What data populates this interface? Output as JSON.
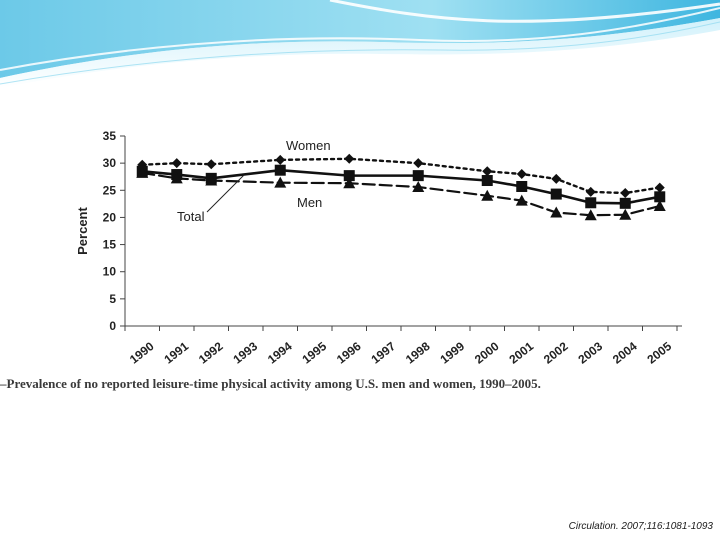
{
  "slide": {
    "caption": "–Prevalence of no reported leisure-time physical activity among U.S. men and women, 1990–2005.",
    "citation": "Circulation. 2007;116:1081-1093",
    "accent_colors": [
      "#7fd3ec",
      "#3fb6e0",
      "#bde9f6"
    ]
  },
  "chart_data": {
    "type": "line",
    "title": "",
    "xlabel": "",
    "ylabel": "Percent",
    "categories": [
      "1990",
      "1991",
      "1992",
      "1993",
      "1994",
      "1995",
      "1996",
      "1997",
      "1998",
      "1999",
      "2000",
      "2001",
      "2002",
      "2003",
      "2004",
      "2005"
    ],
    "ylim": [
      0,
      35
    ],
    "yticks": [
      0,
      5,
      10,
      15,
      20,
      25,
      30,
      35
    ],
    "grid": false,
    "series": [
      {
        "name": "Women",
        "marker": "diamond",
        "line_style": "dotted",
        "color": "#111111",
        "x": [
          1990,
          1991,
          1992,
          1994,
          1996,
          1998,
          2000,
          2001,
          2002,
          2003,
          2004,
          2005
        ],
        "values": [
          29.7,
          30.0,
          29.8,
          30.6,
          30.8,
          30.0,
          28.5,
          28.0,
          27.1,
          24.7,
          24.5,
          25.5
        ]
      },
      {
        "name": "Total",
        "marker": "square",
        "line_style": "solid",
        "color": "#111111",
        "x": [
          1990,
          1991,
          1992,
          1994,
          1996,
          1998,
          2000,
          2001,
          2002,
          2003,
          2004,
          2005
        ],
        "values": [
          28.5,
          27.9,
          27.2,
          28.7,
          27.7,
          27.7,
          26.8,
          25.7,
          24.3,
          22.7,
          22.6,
          23.8
        ]
      },
      {
        "name": "Men",
        "marker": "triangle",
        "line_style": "dashed",
        "color": "#111111",
        "x": [
          1990,
          1991,
          1992,
          1994,
          1996,
          1998,
          2000,
          2001,
          2002,
          2003,
          2004,
          2005
        ],
        "values": [
          28.2,
          27.2,
          26.8,
          26.4,
          26.3,
          25.6,
          24.0,
          23.1,
          20.9,
          20.4,
          20.5,
          22.1
        ]
      }
    ]
  }
}
